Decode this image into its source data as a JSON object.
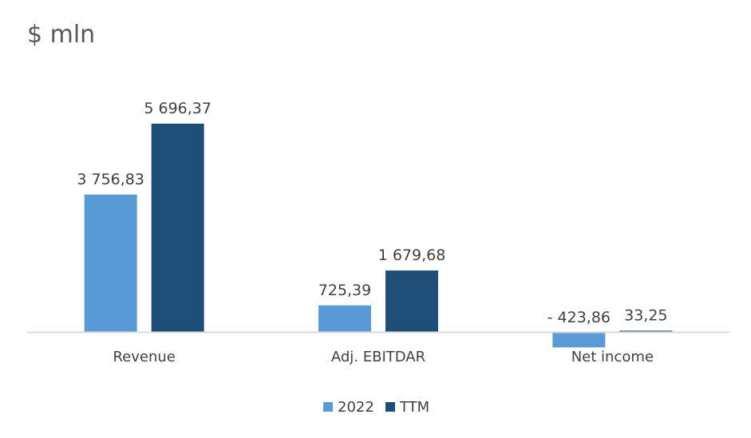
{
  "chart_data": {
    "type": "bar",
    "title": "$ mln",
    "categories": [
      "Revenue",
      "Adj. EBITDAR",
      "Net income"
    ],
    "series": [
      {
        "name": "2022",
        "values": [
          3756.83,
          725.39,
          -423.86
        ],
        "labels": [
          "3 756,83",
          "725,39",
          "- 423,86"
        ],
        "color": "#5B9BD5"
      },
      {
        "name": "TTM",
        "values": [
          5696.37,
          1679.68,
          33.25
        ],
        "labels": [
          "5 696,37",
          "1 679,68",
          "33,25"
        ],
        "color": "#1F4E79"
      }
    ],
    "legend_position": "bottom",
    "grid": false,
    "axis_color": "#D9D9D9"
  }
}
